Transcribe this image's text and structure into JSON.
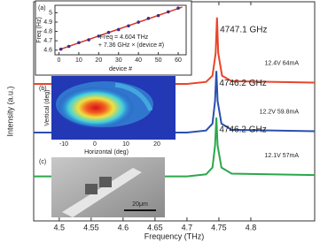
{
  "chart_data": [
    {
      "type": "line",
      "x_label": "Frequency (THz)",
      "y_label": "Intensity (a.u.)",
      "xlim": [
        4.46,
        4.9
      ],
      "ylim": [
        0,
        3.2
      ],
      "xticks": [
        4.5,
        4.55,
        4.6,
        4.65,
        4.7,
        4.75,
        4.8
      ],
      "series": [
        {
          "name": "4747.1 GHz",
          "condition": "12.4V 64mA",
          "color": "#e8452a",
          "x": [
            4.46,
            4.7,
            4.73,
            4.74,
            4.745,
            4.747,
            4.749,
            4.755,
            4.77,
            4.9
          ],
          "values": [
            2.0,
            2.0,
            2.03,
            2.12,
            2.45,
            2.97,
            2.45,
            2.12,
            2.04,
            2.02
          ]
        },
        {
          "name": "4746.2 GHz",
          "condition": "12.2V 59.8mA",
          "color": "#2a4fae",
          "x": [
            4.46,
            4.7,
            4.73,
            4.74,
            4.744,
            4.746,
            4.748,
            4.754,
            4.77,
            4.9
          ],
          "values": [
            1.29,
            1.29,
            1.32,
            1.42,
            1.75,
            2.19,
            1.75,
            1.42,
            1.33,
            1.31
          ]
        },
        {
          "name": "4746.2 GHz",
          "condition": "12.1V 57mA",
          "color": "#2aa84a",
          "x": [
            4.46,
            4.7,
            4.73,
            4.74,
            4.744,
            4.746,
            4.748,
            4.754,
            4.77,
            4.9
          ],
          "values": [
            0.65,
            0.65,
            0.68,
            0.78,
            1.1,
            1.51,
            1.1,
            0.78,
            0.69,
            0.67
          ]
        }
      ]
    },
    {
      "type": "scatter",
      "label": "(a)",
      "x_label": "device #",
      "y_label": "Freq (Hz)",
      "annotation": [
        "Freq = 4.604 THz",
        "+ 7.36 GHz × (device #)"
      ],
      "xlim": [
        -2,
        64
      ],
      "ylim": [
        4.55,
        5.08
      ],
      "xticks": [
        0,
        10,
        20,
        30,
        40,
        50,
        60
      ],
      "yticks": [
        4.6,
        4.7,
        4.8,
        4.9,
        5
      ],
      "points": {
        "color": "#3a2f8a",
        "x": [
          1,
          5,
          10,
          15,
          20,
          25,
          30,
          35,
          40,
          45,
          50,
          55,
          60
        ],
        "values": [
          4.61,
          4.64,
          4.68,
          4.71,
          4.75,
          4.79,
          4.82,
          4.86,
          4.9,
          4.94,
          4.97,
          5.01,
          5.05
        ]
      },
      "fit": {
        "color": "#d8342a",
        "x": [
          0,
          62
        ],
        "values": [
          4.604,
          5.06
        ]
      }
    }
  ],
  "panels": [
    {
      "label": "(b)",
      "x_label": "Horizontal (deg)",
      "y_label": "Vertical (deg)",
      "xticks": [
        "-10",
        "0",
        "10",
        "20"
      ]
    },
    {
      "label": "(c)",
      "scale_bar": "20μm"
    }
  ]
}
